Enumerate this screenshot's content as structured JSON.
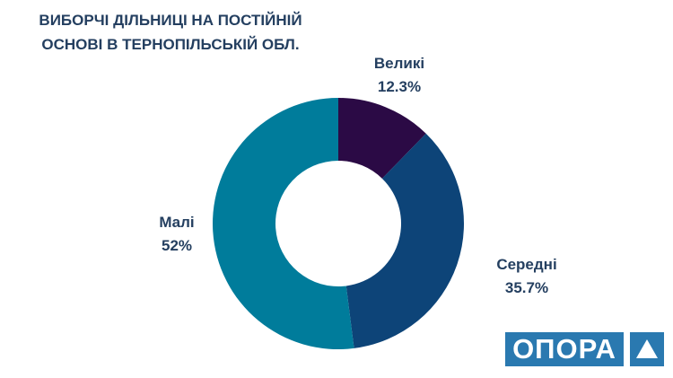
{
  "chart_data": {
    "type": "pie",
    "variant": "donut",
    "title": "ВИБОРЧІ ДІЛЬНИЦІ НА ПОСТІЙНІЙ ОСНОВІ В ТЕРНОПІЛЬСЬКІЙ ОБЛ.",
    "title_lines": [
      "ВИБОРЧІ ДІЛЬНИЦІ НА ПОСТІЙНІЙ",
      "ОСНОВІ В ТЕРНОПІЛЬСЬКІЙ ОБЛ."
    ],
    "slices": [
      {
        "label": "Великі",
        "value": 12.3,
        "display": "12.3%",
        "color": "#2b0a45"
      },
      {
        "label": "Середні",
        "value": 35.7,
        "display": "35.7%",
        "color": "#0d4478"
      },
      {
        "label": "Малі",
        "value": 52,
        "display": "52%",
        "color": "#007c9b"
      }
    ]
  },
  "logo": {
    "text": "ОПОРА",
    "color": "#2a79b0"
  }
}
